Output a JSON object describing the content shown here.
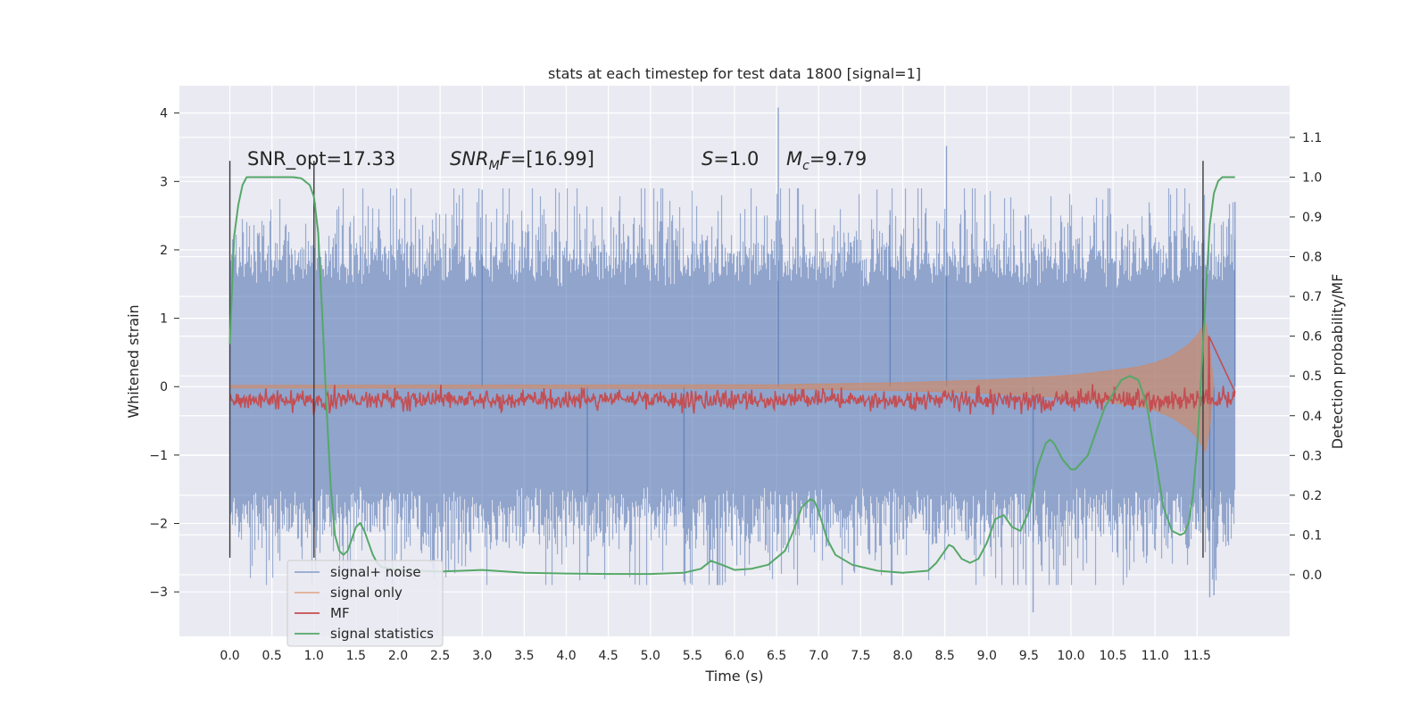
{
  "chart_data": {
    "type": "line",
    "title": "stats at each timestep for test data 1800 [signal=1]",
    "xlabel": "Time (s)",
    "ylabel": "Whitened strain",
    "y2label": "Detection probability/MF",
    "xlim": [
      -0.6,
      12.6
    ],
    "ylim": [
      -3.65,
      4.4
    ],
    "y2lim": [
      -0.155,
      1.23
    ],
    "x_ticks": [
      0.0,
      0.5,
      1.0,
      1.5,
      2.0,
      2.5,
      3.0,
      3.5,
      4.0,
      4.5,
      5.0,
      5.5,
      6.0,
      6.5,
      7.0,
      7.5,
      8.0,
      8.5,
      9.0,
      9.5,
      10.0,
      10.5,
      11.0,
      11.5
    ],
    "x_tick_labels": [
      "0.0",
      "0.5",
      "1.0",
      "1.5",
      "2.0",
      "2.5",
      "3.0",
      "3.5",
      "4.0",
      "4.5",
      "5.0",
      "5.5",
      "6.0",
      "6.5",
      "7.0",
      "7.5",
      "8.0",
      "8.5",
      "9.0",
      "9.5",
      "10.0",
      "10.5",
      "11.0",
      "11.5"
    ],
    "y_ticks": [
      -3,
      -2,
      -1,
      0,
      1,
      2,
      3,
      4
    ],
    "y_tick_labels": [
      "−3",
      "−2",
      "−1",
      "0",
      "1",
      "2",
      "3",
      "4"
    ],
    "y2_ticks": [
      0.0,
      0.1,
      0.2,
      0.3,
      0.4,
      0.5,
      0.6,
      0.7,
      0.8,
      0.9,
      1.0,
      1.1
    ],
    "y2_tick_labels": [
      "0.0",
      "0.1",
      "0.2",
      "0.3",
      "0.4",
      "0.5",
      "0.6",
      "0.7",
      "0.8",
      "0.9",
      "1.0",
      "1.1"
    ],
    "grid": true,
    "legend_position": "bottom-left",
    "annotations": {
      "snr_opt": "SNR_opt=17.33",
      "snr_mf_prefix": "SNR",
      "snr_mf_sub": "M",
      "snr_mf_mid": "F",
      "snr_mf_value": "=[16.99]",
      "s_symbol": "S",
      "s_value": "=1.0",
      "mc_symbol": "M",
      "mc_sub": "c",
      "mc_value": "=9.79"
    },
    "noise": {
      "t_range": [
        0.0,
        11.95
      ],
      "typical_envelope": 1.6,
      "max_value": 4.08,
      "min_value": -3.3,
      "color": "#4c72b0"
    },
    "signal_envelope": {
      "t": [
        0.0,
        6.5,
        7.5,
        8.0,
        8.5,
        9.0,
        9.5,
        10.0,
        10.5,
        10.8,
        11.0,
        11.2,
        11.4,
        11.5,
        11.6,
        11.65,
        11.7
      ],
      "amplitude": [
        0.02,
        0.03,
        0.05,
        0.06,
        0.08,
        0.1,
        0.13,
        0.17,
        0.24,
        0.29,
        0.35,
        0.45,
        0.62,
        0.75,
        0.95,
        0.6,
        0.0
      ],
      "color": "#dd8452"
    },
    "vertical_markers": [
      {
        "x": 0.0,
        "y_from": -2.5,
        "y_to": 3.3
      },
      {
        "x": 1.0,
        "y_from": -2.5,
        "y_to": 3.3
      },
      {
        "x": 11.57,
        "y_from": -2.5,
        "y_to": 3.3
      }
    ],
    "series": [
      {
        "name": "signal+ noise",
        "color": "#4c72b0"
      },
      {
        "name": "signal only",
        "color": "#dd8452"
      },
      {
        "name": "MF",
        "color": "#c44e52",
        "axis": "right",
        "baseline": 0.44,
        "jitter": 0.012,
        "peak": {
          "x": 11.64,
          "y": 0.6
        }
      },
      {
        "name": "signal statistics",
        "color": "#55a868",
        "axis": "right",
        "x": [
          0.0,
          0.05,
          0.1,
          0.15,
          0.2,
          0.3,
          0.5,
          0.75,
          0.85,
          0.95,
          1.0,
          1.05,
          1.1,
          1.15,
          1.2,
          1.25,
          1.3,
          1.35,
          1.4,
          1.45,
          1.5,
          1.55,
          1.6,
          1.65,
          1.7,
          1.75,
          1.8,
          1.9,
          2.0,
          2.5,
          3.0,
          3.5,
          4.0,
          4.5,
          5.0,
          5.4,
          5.6,
          5.72,
          5.85,
          6.0,
          6.2,
          6.4,
          6.6,
          6.7,
          6.8,
          6.9,
          6.95,
          7.0,
          7.1,
          7.2,
          7.4,
          7.7,
          8.0,
          8.3,
          8.4,
          8.5,
          8.55,
          8.6,
          8.7,
          8.8,
          8.9,
          9.0,
          9.1,
          9.2,
          9.3,
          9.4,
          9.5,
          9.6,
          9.7,
          9.75,
          9.8,
          9.9,
          10.0,
          10.05,
          10.2,
          10.4,
          10.6,
          10.7,
          10.8,
          10.9,
          11.0,
          11.1,
          11.2,
          11.3,
          11.35,
          11.4,
          11.45,
          11.5,
          11.55,
          11.6,
          11.65,
          11.7,
          11.75,
          11.8,
          11.9,
          11.95
        ],
        "y": [
          0.58,
          0.85,
          0.93,
          0.98,
          1.0,
          1.0,
          1.0,
          1.0,
          0.997,
          0.98,
          0.95,
          0.86,
          0.65,
          0.42,
          0.22,
          0.1,
          0.06,
          0.05,
          0.06,
          0.09,
          0.12,
          0.13,
          0.11,
          0.08,
          0.05,
          0.03,
          0.02,
          0.015,
          0.012,
          0.008,
          0.012,
          0.005,
          0.003,
          0.002,
          0.002,
          0.005,
          0.015,
          0.035,
          0.025,
          0.012,
          0.015,
          0.025,
          0.06,
          0.11,
          0.17,
          0.19,
          0.185,
          0.16,
          0.09,
          0.05,
          0.025,
          0.01,
          0.005,
          0.01,
          0.03,
          0.06,
          0.075,
          0.07,
          0.04,
          0.03,
          0.04,
          0.08,
          0.14,
          0.15,
          0.12,
          0.11,
          0.16,
          0.27,
          0.33,
          0.34,
          0.33,
          0.29,
          0.265,
          0.265,
          0.3,
          0.42,
          0.49,
          0.5,
          0.49,
          0.43,
          0.3,
          0.17,
          0.11,
          0.1,
          0.105,
          0.13,
          0.2,
          0.32,
          0.5,
          0.7,
          0.88,
          0.96,
          0.99,
          1.0,
          1.0,
          1.0
        ]
      }
    ]
  }
}
